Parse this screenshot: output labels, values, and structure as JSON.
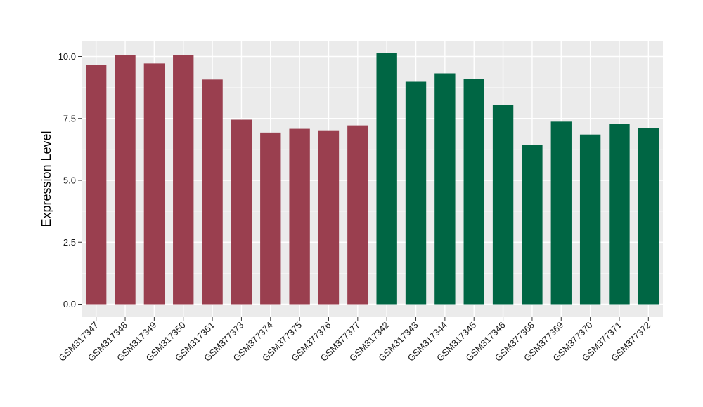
{
  "chart_data": {
    "type": "bar",
    "title": "",
    "xlabel": "",
    "ylabel": "Expression Level",
    "ylim": [
      0,
      10.5
    ],
    "yticks": [
      0.0,
      2.5,
      5.0,
      7.5,
      10.0
    ],
    "ytick_labels": [
      "0.0",
      "2.5",
      "5.0",
      "7.5",
      "10.0"
    ],
    "grid": true,
    "legend": "none",
    "categories": [
      "GSM317347",
      "GSM317348",
      "GSM317349",
      "GSM317350",
      "GSM317351",
      "GSM377373",
      "GSM377374",
      "GSM377375",
      "GSM377376",
      "GSM377377",
      "GSM317342",
      "GSM317343",
      "GSM317344",
      "GSM317345",
      "GSM317346",
      "GSM377368",
      "GSM377369",
      "GSM377370",
      "GSM377371",
      "GSM377372"
    ],
    "values": [
      9.65,
      10.05,
      9.72,
      10.05,
      9.07,
      7.45,
      6.93,
      7.08,
      7.02,
      7.22,
      10.15,
      8.98,
      9.32,
      9.08,
      8.05,
      6.43,
      7.37,
      6.85,
      7.28,
      7.12
    ],
    "colors": [
      "#9a3f4f",
      "#9a3f4f",
      "#9a3f4f",
      "#9a3f4f",
      "#9a3f4f",
      "#9a3f4f",
      "#9a3f4f",
      "#9a3f4f",
      "#9a3f4f",
      "#9a3f4f",
      "#006644",
      "#006644",
      "#006644",
      "#006644",
      "#006644",
      "#006644",
      "#006644",
      "#006644",
      "#006644",
      "#006644"
    ]
  }
}
